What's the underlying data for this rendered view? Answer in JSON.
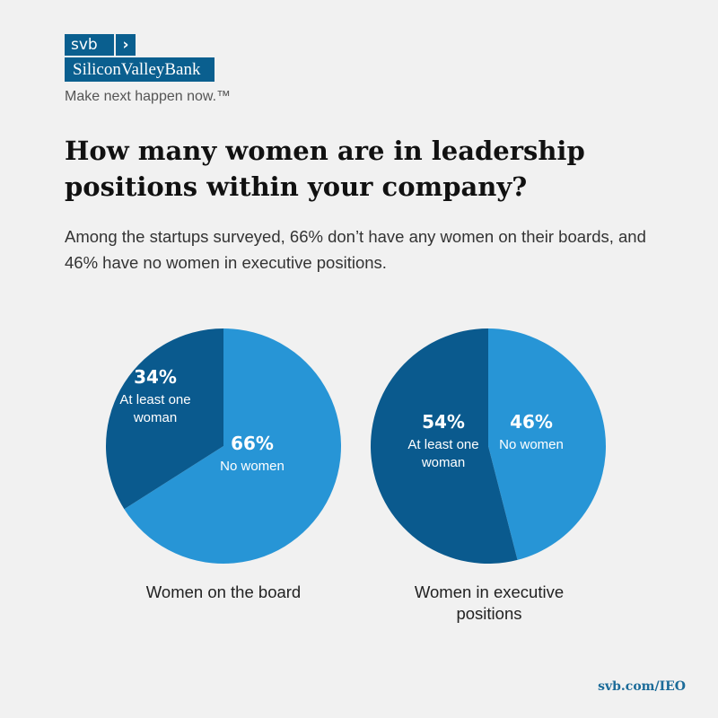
{
  "brand": {
    "logo_text": "svb",
    "logo_chevron": "›",
    "bank_name": "SiliconValleyBank",
    "tagline": "Make next happen now.™",
    "color": "#0a5f8f"
  },
  "title": "How many women are in leadership positions within your company?",
  "subtitle": "Among the startups surveyed, 66% don’t have any women on their boards, and 46% have no women in executive positions.",
  "footer_link": "svb.com/IEO",
  "colors": {
    "dark": "#0a5a8e",
    "light": "#2795d6"
  },
  "chart_data": [
    {
      "type": "pie",
      "title": "Women on the board",
      "slices": [
        {
          "label": "No women",
          "value": 66,
          "display": "66%",
          "color": "#2795d6"
        },
        {
          "label": "At least one woman",
          "value": 34,
          "display": "34%",
          "color": "#0a5a8e"
        }
      ]
    },
    {
      "type": "pie",
      "title": "Women in executive positions",
      "slices": [
        {
          "label": "No women",
          "value": 46,
          "display": "46%",
          "color": "#2795d6"
        },
        {
          "label": "At least one woman",
          "value": 54,
          "display": "54%",
          "color": "#0a5a8e"
        }
      ]
    }
  ]
}
